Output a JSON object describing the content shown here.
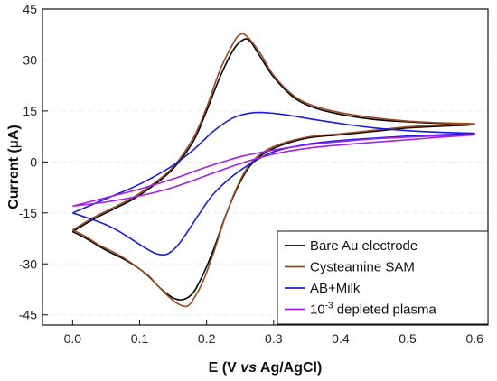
{
  "chart_data": {
    "type": "line",
    "xlabel_parts": {
      "pre": "E (V ",
      "italic": "vs",
      "post": " Ag/AgCl)"
    },
    "ylabel_parts": {
      "pre": "Current (",
      "greek": "μ",
      "post": "A)"
    },
    "xlim": [
      -0.045,
      0.62
    ],
    "ylim": [
      -48,
      45
    ],
    "xticks": [
      0.0,
      0.1,
      0.2,
      0.3,
      0.4,
      0.5,
      0.6
    ],
    "xtick_labels": [
      "0.0",
      "0.1",
      "0.2",
      "0.3",
      "0.4",
      "0.5",
      "0.6"
    ],
    "yticks": [
      45,
      30,
      15,
      0,
      -15,
      -30,
      -45
    ],
    "ytick_labels": [
      "45",
      "30",
      "15",
      "0",
      "-15",
      "-30",
      "-45"
    ],
    "legend_position": "bottom-right",
    "series": [
      {
        "name": "Bare Au electrode",
        "color": "#000000",
        "forward": {
          "x": [
            0.0,
            0.03,
            0.06,
            0.09,
            0.12,
            0.15,
            0.18,
            0.2,
            0.22,
            0.24,
            0.255,
            0.265,
            0.28,
            0.3,
            0.33,
            0.36,
            0.4,
            0.45,
            0.5,
            0.55,
            0.6
          ],
          "y": [
            -20.5,
            -17,
            -14,
            -11,
            -7,
            -2,
            6,
            15,
            25,
            33,
            36,
            35.5,
            31,
            25,
            19,
            16,
            14,
            12.5,
            11.8,
            11.3,
            11
          ]
        },
        "reverse": {
          "x": [
            0.6,
            0.55,
            0.5,
            0.45,
            0.4,
            0.35,
            0.3,
            0.27,
            0.25,
            0.23,
            0.21,
            0.195,
            0.18,
            0.165,
            0.15,
            0.13,
            0.11,
            0.08,
            0.05,
            0.02,
            0.0
          ],
          "y": [
            11,
            10.5,
            10,
            9,
            8,
            7,
            4,
            0,
            -6,
            -15,
            -26,
            -33,
            -38.5,
            -40.5,
            -40,
            -37,
            -33,
            -29,
            -26,
            -22.5,
            -20.5
          ]
        }
      },
      {
        "name": "Cysteamine SAM",
        "color": "#9a4a1e",
        "forward": {
          "x": [
            0.0,
            0.03,
            0.06,
            0.09,
            0.12,
            0.15,
            0.18,
            0.2,
            0.22,
            0.24,
            0.25,
            0.26,
            0.28,
            0.3,
            0.33,
            0.36,
            0.4,
            0.45,
            0.5,
            0.55,
            0.6
          ],
          "y": [
            -20,
            -16.5,
            -13.5,
            -10.5,
            -6.5,
            -1.5,
            7,
            16,
            27,
            35,
            37.5,
            37,
            32,
            25.5,
            19.5,
            16.5,
            14.5,
            13,
            12,
            11.5,
            11.2
          ]
        },
        "reverse": {
          "x": [
            0.6,
            0.55,
            0.5,
            0.45,
            0.4,
            0.35,
            0.3,
            0.27,
            0.25,
            0.23,
            0.21,
            0.195,
            0.18,
            0.17,
            0.155,
            0.14,
            0.12,
            0.1,
            0.07,
            0.04,
            0.02,
            0.0
          ],
          "y": [
            11.2,
            10.8,
            10.3,
            9.3,
            8.3,
            7.3,
            4.5,
            0.5,
            -5.5,
            -15,
            -27,
            -35,
            -40.5,
            -42.5,
            -41.5,
            -39,
            -35,
            -31.5,
            -27.5,
            -24.5,
            -22,
            -20
          ]
        }
      },
      {
        "name": "AB+Milk",
        "color": "#1a1ae0",
        "forward": {
          "x": [
            0.0,
            0.03,
            0.06,
            0.09,
            0.12,
            0.15,
            0.18,
            0.21,
            0.24,
            0.27,
            0.3,
            0.33,
            0.36,
            0.4,
            0.45,
            0.5,
            0.55,
            0.6
          ],
          "y": [
            -15,
            -12.5,
            -10,
            -7.5,
            -4.5,
            -1,
            3.5,
            9,
            13,
            14.5,
            14.3,
            13.5,
            12.5,
            11.3,
            10,
            9.2,
            8.7,
            8.4
          ]
        },
        "reverse": {
          "x": [
            0.6,
            0.55,
            0.5,
            0.45,
            0.4,
            0.35,
            0.3,
            0.27,
            0.24,
            0.21,
            0.19,
            0.17,
            0.155,
            0.14,
            0.125,
            0.11,
            0.09,
            0.07,
            0.05,
            0.03,
            0.015,
            0.0
          ],
          "y": [
            8.4,
            8,
            7.6,
            7,
            6.3,
            5.2,
            3,
            0,
            -4,
            -9.5,
            -15,
            -21,
            -25,
            -27.2,
            -27,
            -25.5,
            -23,
            -20.5,
            -18.5,
            -17,
            -16,
            -15
          ]
        }
      },
      {
        "name": "10^-3 depleted plasma",
        "color": "#a020f0",
        "forward": {
          "x": [
            0.0,
            0.05,
            0.1,
            0.15,
            0.2,
            0.25,
            0.3,
            0.35,
            0.4,
            0.45,
            0.5,
            0.55,
            0.6
          ],
          "y": [
            -13,
            -10.5,
            -8,
            -5,
            -1.5,
            1.5,
            3.5,
            5,
            6,
            6.8,
            7.3,
            7.7,
            8
          ]
        },
        "reverse": {
          "x": [
            0.6,
            0.55,
            0.5,
            0.45,
            0.4,
            0.35,
            0.3,
            0.25,
            0.2,
            0.15,
            0.1,
            0.05,
            0.0
          ],
          "y": [
            8,
            7.3,
            6.5,
            5.8,
            5,
            4,
            2.3,
            -0.5,
            -4,
            -7.5,
            -10,
            -11.8,
            -13
          ]
        }
      }
    ]
  },
  "legend": {
    "items": [
      {
        "text": "Bare Au electrode",
        "color": "#000000"
      },
      {
        "text": "Cysteamine SAM",
        "color": "#9a4a1e"
      },
      {
        "text": "AB+Milk",
        "color": "#1a1ae0"
      },
      {
        "base": "10",
        "sup": "-3",
        "rest": " depleted plasma",
        "color": "#a020f0"
      }
    ]
  }
}
